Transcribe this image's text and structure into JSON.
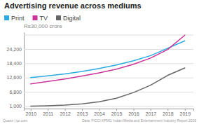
{
  "chart_data": {
    "type": "line",
    "title": "Advertising revenue across mediums",
    "ylabel": "Rs30,000 crore",
    "annotations": [
      "Quartz | qz.com",
      "Data: FICCI KPMG Indian Media and Entertainment Industry Report 2019"
    ],
    "x": [
      2010,
      2011,
      2012,
      2013,
      2014,
      2015,
      2016,
      2017,
      2018,
      2019
    ],
    "series": [
      {
        "name": "Print",
        "color": "#29abe2",
        "values": [
          12600,
          13300,
          14100,
          15100,
          16300,
          17700,
          19400,
          21500,
          24500,
          27500
        ]
      },
      {
        "name": "TV",
        "color": "#cc3399",
        "values": [
          10000,
          11000,
          12000,
          13200,
          14500,
          16000,
          18000,
          20500,
          24000,
          29800
        ]
      },
      {
        "name": "Digital",
        "color": "#666666",
        "values": [
          1000,
          1150,
          1400,
          1900,
          2800,
          4200,
          6500,
          9500,
          13500,
          16500
        ]
      }
    ],
    "xlim": [
      2009.6,
      2019.5
    ],
    "xticks": [
      2010,
      2011,
      2012,
      2013,
      2014,
      2015,
      2016,
      2017,
      2018,
      2019
    ],
    "ylim": [
      0,
      31000
    ],
    "yticks": [
      {
        "value": 1000,
        "label": "1,000"
      },
      {
        "value": 6800,
        "label": "6,800"
      },
      {
        "value": 12600,
        "label": "12,600"
      },
      {
        "value": 18400,
        "label": "18,400"
      },
      {
        "value": 24200,
        "label": "24,200"
      },
      {
        "value": 30000,
        "label": null
      }
    ],
    "grid": true
  }
}
